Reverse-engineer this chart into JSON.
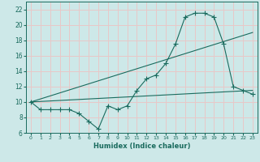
{
  "title": "",
  "xlabel": "Humidex (Indice chaleur)",
  "ylabel": "",
  "bg_color": "#cde8e8",
  "grid_color": "#e8c8c8",
  "line_color": "#1a6b5e",
  "xlim": [
    -0.5,
    23.5
  ],
  "ylim": [
    6,
    23
  ],
  "yticks": [
    6,
    8,
    10,
    12,
    14,
    16,
    18,
    20,
    22
  ],
  "xticks": [
    0,
    1,
    2,
    3,
    4,
    5,
    6,
    7,
    8,
    9,
    10,
    11,
    12,
    13,
    14,
    15,
    16,
    17,
    18,
    19,
    20,
    21,
    22,
    23
  ],
  "curve1_x": [
    0,
    1,
    2,
    3,
    4,
    5,
    6,
    7,
    8,
    9,
    10,
    11,
    12,
    13,
    14,
    15,
    16,
    17,
    18,
    19,
    20,
    21,
    22,
    23
  ],
  "curve1_y": [
    10,
    9,
    9,
    9,
    9,
    8.5,
    7.5,
    6.5,
    9.5,
    9,
    9.5,
    11.5,
    13,
    13.5,
    15,
    17.5,
    21,
    21.5,
    21.5,
    21,
    17.5,
    12,
    11.5,
    11
  ],
  "curve2_x": [
    0,
    23
  ],
  "curve2_y": [
    10,
    19
  ],
  "curve3_x": [
    0,
    23
  ],
  "curve3_y": [
    10,
    11.5
  ],
  "markersize": 2.5
}
